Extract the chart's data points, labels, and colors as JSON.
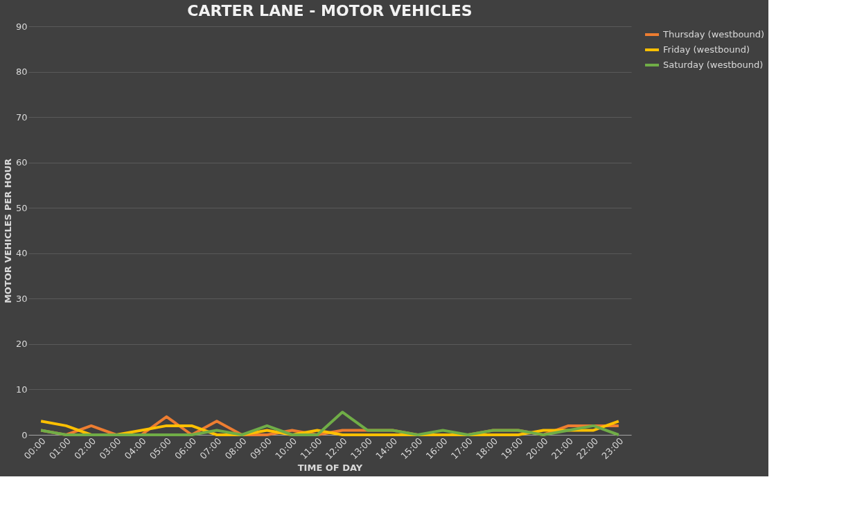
{
  "chart_data": {
    "type": "line",
    "title": "CARTER LANE - MOTOR VEHICLES",
    "xlabel": "TIME OF DAY",
    "ylabel": "MOTOR VEHICLES PER HOUR",
    "categories": [
      "00:00",
      "01:00",
      "02:00",
      "03:00",
      "04:00",
      "05:00",
      "06:00",
      "07:00",
      "08:00",
      "09:00",
      "10:00",
      "11:00",
      "12:00",
      "13:00",
      "14:00",
      "15:00",
      "16:00",
      "17:00",
      "18:00",
      "19:00",
      "20:00",
      "21:00",
      "22:00",
      "23:00"
    ],
    "series": [
      {
        "name": "Thursday (westbound)",
        "color": "#ed7d31",
        "values": [
          1,
          0,
          2,
          0,
          0,
          4,
          0,
          3,
          0,
          0,
          1,
          0,
          1,
          1,
          1,
          0,
          0,
          0,
          1,
          1,
          0,
          2,
          2,
          2
        ]
      },
      {
        "name": "Friday (westbound)",
        "color": "#ffc000",
        "values": [
          3,
          2,
          0,
          0,
          1,
          2,
          2,
          0,
          0,
          1,
          0,
          1,
          0,
          0,
          0,
          0,
          0,
          0,
          0,
          0,
          1,
          1,
          1,
          3
        ]
      },
      {
        "name": "Saturday (westbound)",
        "color": "#70ad47",
        "values": [
          1,
          0,
          0,
          0,
          0,
          0,
          0,
          1,
          0,
          2,
          0,
          0,
          5,
          1,
          1,
          0,
          1,
          0,
          1,
          1,
          0,
          1,
          2,
          0
        ]
      }
    ],
    "ylim": [
      0,
      90
    ],
    "yticks": [
      0,
      10,
      20,
      30,
      40,
      50,
      60,
      70,
      80,
      90
    ],
    "grid": "y",
    "legend": "right",
    "marker": "none",
    "line_style": "solid"
  }
}
